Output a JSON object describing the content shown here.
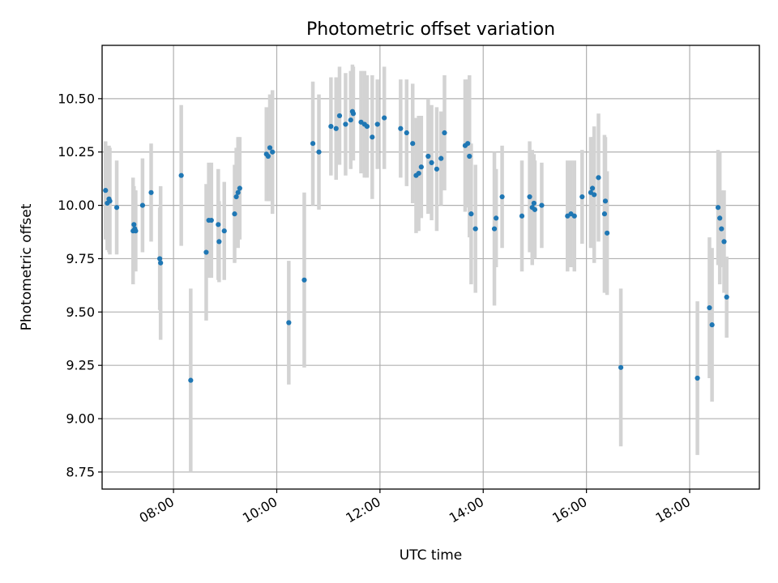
{
  "chart_data": {
    "type": "scatter",
    "title": "Photometric offset variation",
    "xlabel": "UTC time",
    "ylabel": "Photometric offset",
    "x_axis": "time-of-day",
    "xlim": [
      "06:37",
      "19:21"
    ],
    "ylim": [
      8.67,
      10.75
    ],
    "x_ticks": [
      "08:00",
      "10:00",
      "12:00",
      "14:00",
      "16:00",
      "18:00"
    ],
    "y_ticks": [
      "8.75",
      "9.00",
      "9.25",
      "9.50",
      "9.75",
      "10.00",
      "10.25",
      "10.50"
    ],
    "grid": true,
    "legend": "none",
    "colors": {
      "marker": "#1f77b4",
      "errorbar": "#d3d3d3"
    },
    "series": [
      {
        "x": [
          "06:41",
          "06:43",
          "06:45",
          "06:46",
          "06:54",
          "07:13",
          "07:14",
          "07:15",
          "07:16",
          "07:24",
          "07:34",
          "07:44",
          "07:45",
          "08:09",
          "08:20",
          "08:38",
          "08:41",
          "08:44",
          "08:52",
          "08:53",
          "08:59",
          "09:11",
          "09:13",
          "09:15",
          "09:17",
          "09:48",
          "09:50",
          "09:52",
          "09:55",
          "10:14",
          "10:32",
          "10:42",
          "10:49",
          "11:03",
          "11:09",
          "11:13",
          "11:20",
          "11:26",
          "11:28",
          "11:29",
          "11:38",
          "11:42",
          "11:45",
          "11:51",
          "11:57",
          "12:05",
          "12:24",
          "12:31",
          "12:38",
          "12:42",
          "12:45",
          "12:48",
          "12:56",
          "13:00",
          "13:06",
          "13:11",
          "13:15",
          "13:39",
          "13:42",
          "13:44",
          "13:46",
          "13:51",
          "14:13",
          "14:15",
          "14:22",
          "14:45",
          "14:54",
          "14:57",
          "14:59",
          "15:00",
          "15:08",
          "15:38",
          "15:42",
          "15:46",
          "15:55",
          "16:05",
          "16:07",
          "16:09",
          "16:14",
          "16:21",
          "16:22",
          "16:24",
          "16:40",
          "18:09",
          "18:23",
          "18:26",
          "18:33",
          "18:35",
          "18:37",
          "18:40",
          "18:43"
        ],
        "y": [
          10.07,
          10.01,
          10.03,
          10.02,
          9.99,
          9.88,
          9.91,
          9.89,
          9.88,
          10.0,
          10.06,
          9.75,
          9.73,
          10.14,
          9.18,
          9.78,
          9.93,
          9.93,
          9.91,
          9.83,
          9.88,
          9.96,
          10.04,
          10.06,
          10.08,
          10.24,
          10.23,
          10.27,
          10.25,
          9.45,
          9.65,
          10.29,
          10.25,
          10.37,
          10.36,
          10.42,
          10.38,
          10.4,
          10.44,
          10.43,
          10.39,
          10.38,
          10.37,
          10.32,
          10.38,
          10.41,
          10.36,
          10.34,
          10.29,
          10.14,
          10.15,
          10.18,
          10.23,
          10.2,
          10.17,
          10.22,
          10.34,
          10.28,
          10.29,
          10.23,
          9.96,
          9.89,
          9.89,
          9.94,
          10.04,
          9.95,
          10.04,
          9.99,
          10.01,
          9.98,
          10.0,
          9.95,
          9.96,
          9.95,
          10.04,
          10.06,
          10.08,
          10.05,
          10.13,
          9.96,
          10.02,
          9.87,
          9.24,
          9.19,
          9.52,
          9.44,
          9.99,
          9.94,
          9.89,
          9.83,
          9.57
        ],
        "yerr": [
          0.23,
          0.22,
          0.25,
          0.25,
          0.22,
          0.25,
          0.18,
          0.18,
          0.19,
          0.22,
          0.23,
          0.24,
          0.36,
          0.33,
          0.43,
          0.32,
          0.27,
          0.27,
          0.26,
          0.19,
          0.23,
          0.23,
          0.23,
          0.26,
          0.24,
          0.22,
          0.21,
          0.25,
          0.29,
          0.29,
          0.41,
          0.29,
          0.27,
          0.23,
          0.24,
          0.23,
          0.24,
          0.23,
          0.22,
          0.22,
          0.24,
          0.25,
          0.24,
          0.29,
          0.21,
          0.24,
          0.23,
          0.25,
          0.28,
          0.27,
          0.27,
          0.24,
          0.27,
          0.27,
          0.29,
          0.22,
          0.27,
          0.31,
          0.3,
          0.38,
          0.33,
          0.3,
          0.36,
          0.23,
          0.24,
          0.26,
          0.26,
          0.27,
          0.23,
          0.23,
          0.2,
          0.26,
          0.25,
          0.26,
          0.22,
          0.26,
          0.24,
          0.32,
          0.3,
          0.37,
          0.3,
          0.29,
          0.37,
          0.36,
          0.33,
          0.36,
          0.27,
          0.31,
          0.18,
          0.24,
          0.19
        ]
      }
    ]
  }
}
